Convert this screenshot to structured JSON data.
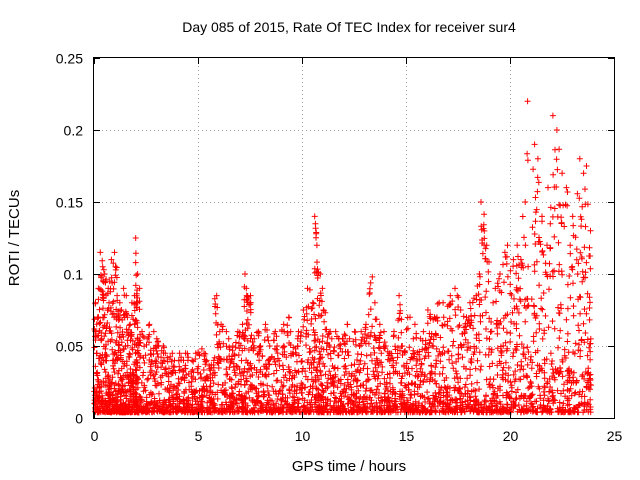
{
  "chart_data": {
    "type": "scatter",
    "title": "Day 085 of 2015, Rate Of TEC Index for receiver sur4",
    "xlabel": "GPS time / hours",
    "ylabel": "ROTI / TECUs",
    "xlim": [
      0,
      25
    ],
    "ylim": [
      0,
      0.25
    ],
    "xticks": [
      0,
      5,
      10,
      15,
      20,
      25
    ],
    "yticks": [
      0,
      0.05,
      0.1,
      0.15,
      0.2,
      0.25
    ],
    "xtick_labels": [
      "0",
      "5",
      "10",
      "15",
      "20",
      "25"
    ],
    "ytick_labels": [
      "0",
      "0.05",
      "0.1",
      "0.15",
      "0.2",
      "0.25"
    ],
    "grid": true,
    "marker": "+",
    "series": [
      {
        "name": "ROTI",
        "color": "#ff0000",
        "x": [
          0.0,
          0.1,
          0.2,
          0.3,
          0.4,
          0.5,
          0.6,
          0.7,
          0.8,
          0.9,
          1.0,
          1.1,
          1.2,
          1.3,
          1.4,
          1.5,
          1.6,
          1.7,
          1.8,
          1.9,
          2.0,
          2.05,
          2.1,
          2.2,
          2.4,
          2.6,
          2.8,
          3.0,
          3.2,
          3.4,
          3.6,
          3.8,
          4.0,
          4.2,
          4.4,
          4.6,
          4.8,
          5.0,
          5.2,
          5.4,
          5.6,
          5.8,
          6.0,
          6.2,
          6.4,
          6.6,
          6.8,
          7.0,
          7.2,
          7.3,
          7.4,
          7.6,
          7.8,
          8.0,
          8.2,
          8.4,
          8.6,
          8.8,
          9.0,
          9.2,
          9.4,
          9.6,
          9.8,
          10.0,
          10.2,
          10.4,
          10.6,
          10.7,
          10.8,
          10.9,
          11.0,
          11.2,
          11.4,
          11.6,
          11.8,
          12.0,
          12.2,
          12.4,
          12.6,
          12.8,
          13.0,
          13.2,
          13.4,
          13.6,
          13.8,
          14.0,
          14.2,
          14.4,
          14.6,
          14.8,
          15.0,
          15.2,
          15.4,
          15.6,
          15.8,
          16.0,
          16.2,
          16.4,
          16.6,
          16.8,
          17.0,
          17.2,
          17.4,
          17.6,
          17.8,
          18.0,
          18.2,
          18.4,
          18.6,
          18.8,
          19.0,
          19.2,
          19.4,
          19.6,
          19.8,
          20.0,
          20.2,
          20.4,
          20.6,
          20.8,
          21.0,
          21.2,
          21.4,
          21.6,
          21.8,
          22.0,
          22.2,
          22.4,
          22.6,
          22.8,
          23.0,
          23.2,
          23.4,
          23.6,
          23.8
        ],
        "upper": [
          0.08,
          0.07,
          0.09,
          0.115,
          0.105,
          0.1,
          0.09,
          0.095,
          0.11,
          0.115,
          0.105,
          0.085,
          0.08,
          0.075,
          0.09,
          0.085,
          0.07,
          0.065,
          0.08,
          0.085,
          0.125,
          0.1,
          0.09,
          0.06,
          0.055,
          0.065,
          0.06,
          0.055,
          0.05,
          0.045,
          0.045,
          0.04,
          0.045,
          0.04,
          0.045,
          0.04,
          0.045,
          0.048,
          0.045,
          0.04,
          0.04,
          0.085,
          0.065,
          0.06,
          0.055,
          0.05,
          0.06,
          0.065,
          0.1,
          0.09,
          0.085,
          0.055,
          0.06,
          0.05,
          0.065,
          0.05,
          0.06,
          0.05,
          0.065,
          0.07,
          0.06,
          0.055,
          0.06,
          0.075,
          0.09,
          0.08,
          0.14,
          0.12,
          0.1,
          0.09,
          0.075,
          0.06,
          0.055,
          0.06,
          0.055,
          0.065,
          0.055,
          0.06,
          0.05,
          0.06,
          0.065,
          0.098,
          0.08,
          0.065,
          0.06,
          0.05,
          0.045,
          0.06,
          0.085,
          0.05,
          0.07,
          0.055,
          0.065,
          0.055,
          0.06,
          0.075,
          0.07,
          0.08,
          0.08,
          0.07,
          0.085,
          0.09,
          0.085,
          0.075,
          0.07,
          0.08,
          0.085,
          0.1,
          0.15,
          0.12,
          0.08,
          0.09,
          0.1,
          0.115,
          0.12,
          0.11,
          0.12,
          0.11,
          0.15,
          0.22,
          0.19,
          0.18,
          0.14,
          0.12,
          0.16,
          0.21,
          0.2,
          0.17,
          0.16,
          0.12,
          0.14,
          0.18,
          0.17,
          0.175,
          0.13
        ]
      }
    ]
  }
}
